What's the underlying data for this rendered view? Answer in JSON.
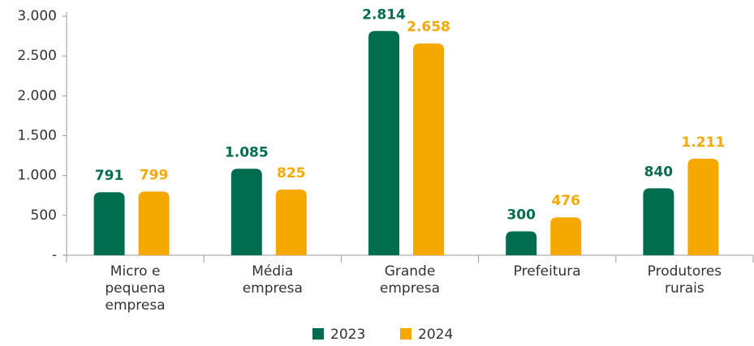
{
  "chart_data": {
    "type": "bar",
    "categories": [
      "Micro e\npequena\nempresa",
      "Média\nempresa",
      "Grande\nempresa",
      "Prefeitura",
      "Produtores\nrurais"
    ],
    "series": [
      {
        "name": "2023",
        "color": "#006e4e",
        "values": [
          791,
          1085,
          2814,
          300,
          840
        ],
        "value_labels": [
          "791",
          "1.085",
          "2.814",
          "300",
          "840"
        ]
      },
      {
        "name": "2024",
        "color": "#f5a800",
        "values": [
          799,
          825,
          2658,
          476,
          1211
        ],
        "value_labels": [
          "799",
          "825",
          "2.658",
          "476",
          "1.211"
        ]
      }
    ],
    "ylim": [
      0,
      3000
    ],
    "yticks": [
      {
        "value": 0,
        "label": "-"
      },
      500,
      {
        "value": 1000,
        "label": "1.000"
      },
      {
        "value": 1500,
        "label": "1.500"
      },
      {
        "value": 2000,
        "label": "2.000"
      },
      {
        "value": 2500,
        "label": "2.500"
      },
      {
        "value": 3000,
        "label": "3.000"
      }
    ],
    "grid": false,
    "legend": "bottom"
  }
}
